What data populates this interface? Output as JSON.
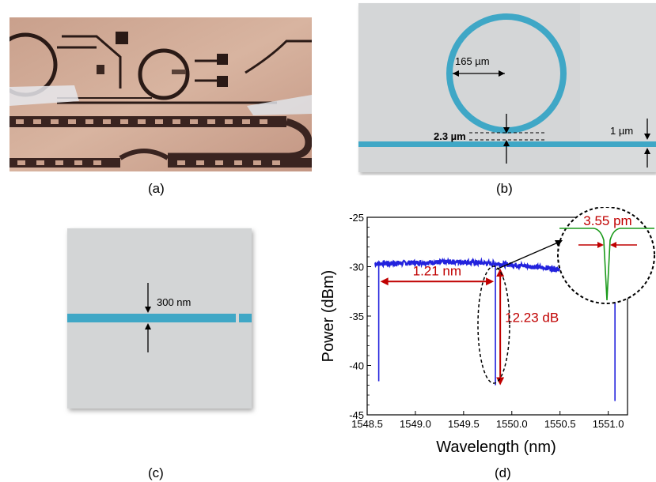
{
  "panels": {
    "a": {
      "label": "(a)"
    },
    "b": {
      "label": "(b)",
      "ring_diameter": "165 µm",
      "gap": "2.3 µm",
      "waveguide_width": "1 µm"
    },
    "c": {
      "label": "(c)",
      "thickness": "300 nm"
    },
    "d": {
      "label": "(d)"
    }
  },
  "chart_data": {
    "type": "line",
    "xlabel": "Wavelength (nm)",
    "ylabel": "Power (dBm)",
    "xlim": [
      1548.5,
      1551.2
    ],
    "ylim": [
      -45,
      -25
    ],
    "xticks": [
      "1548.5",
      "1549.0",
      "1549.5",
      "1550.0",
      "1550.5",
      "1551.0"
    ],
    "xtick_values": [
      1548.5,
      1549.0,
      1549.5,
      1550.0,
      1550.5,
      1551.0
    ],
    "yticks": [
      "-25",
      "-30",
      "-35",
      "-40",
      "-45"
    ],
    "ytick_values": [
      -25,
      -30,
      -35,
      -40,
      -45
    ],
    "series": [
      {
        "color": "#2222dd",
        "baseline": [
          [
            1548.58,
            -29.7
          ],
          [
            1549.0,
            -29.6
          ],
          [
            1549.5,
            -29.5
          ],
          [
            1550.0,
            -29.8
          ],
          [
            1550.45,
            -30.2
          ],
          [
            1550.56,
            -30.3
          ]
        ],
        "dips": [
          {
            "x": 1548.62,
            "y": -41.6
          },
          {
            "x": 1549.83,
            "y": -42.0
          },
          {
            "x": 1551.07,
            "y": -43.6
          }
        ]
      }
    ],
    "annotations": {
      "fsr": "1.21 nm",
      "extinction": "12.23 dB",
      "linewidth": "3.55 pm"
    },
    "colors": {
      "annotation": "#c00000",
      "inset_trace": "#1a9a1a"
    }
  }
}
